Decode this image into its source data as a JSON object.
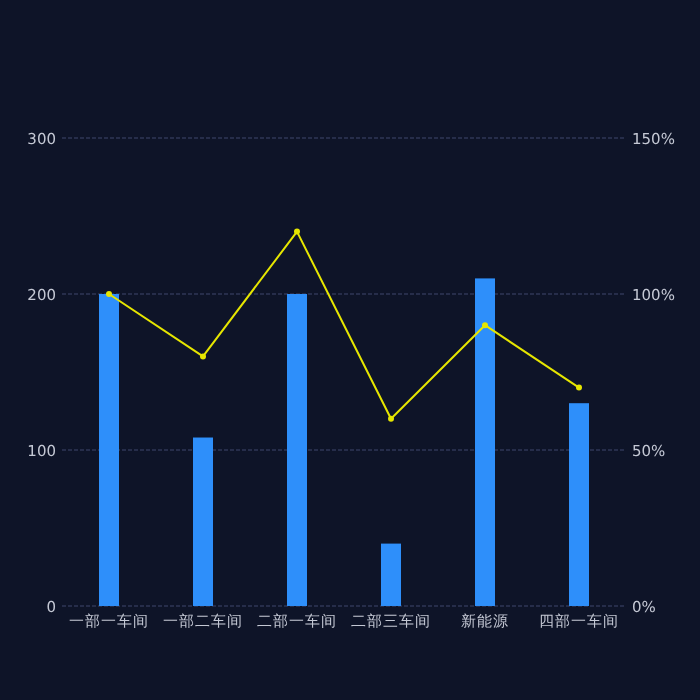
{
  "chart_data": {
    "type": "bar",
    "categories": [
      "一部一车间",
      "一部二车间",
      "二部一车间",
      "二部三车间",
      "新能源",
      "四部一车间"
    ],
    "series": [
      {
        "color": "#2e8ffa",
        "values": [
          200,
          108,
          200,
          40,
          210,
          130
        ]
      },
      {
        "type": "line",
        "axis": "y2",
        "color": "#e6e600",
        "marker": "circle",
        "values": [
          100,
          80,
          120,
          60,
          90,
          70
        ]
      }
    ],
    "ylim": [
      0,
      300
    ],
    "yticks": [
      0,
      100,
      200,
      300
    ],
    "y2lim": [
      0,
      150
    ],
    "y2ticks": [
      {
        "value": 0,
        "label": "0%"
      },
      {
        "value": 50,
        "label": "50%"
      },
      {
        "value": 100,
        "label": "100%"
      },
      {
        "value": 150,
        "label": "150%"
      }
    ],
    "grid": "y"
  }
}
